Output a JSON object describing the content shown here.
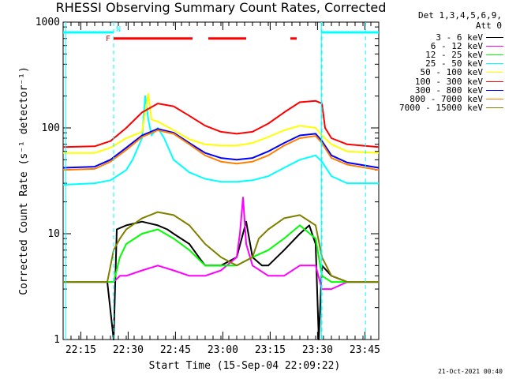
{
  "title": "RHESSI Observing Summary Count Rates, Corrected",
  "legend_header": [
    "Det 1,3,4,5,6,9,",
    "Att 0"
  ],
  "footer_date": "21-Oct-2021 00:40",
  "flags": {
    "f_label": "F",
    "n_label": "N"
  },
  "chart_data": {
    "type": "line",
    "xlabel": "Start Time (15-Sep-04 22:09:22)",
    "ylabel": "Corrected Count Rate (s⁻¹ detector⁻¹)",
    "x_ticks": [
      "22:15",
      "22:30",
      "22:45",
      "23:00",
      "23:15",
      "23:30",
      "23:45"
    ],
    "x_tick_minutes": [
      5.6,
      20.6,
      35.6,
      50.6,
      65.6,
      80.6,
      95.6
    ],
    "x_range_minutes": [
      0,
      100
    ],
    "y_scale": "log",
    "ylim": [
      1,
      1000
    ],
    "y_ticks": [
      "1",
      "10",
      "100",
      "1000"
    ],
    "y_tick_values": [
      1,
      10,
      100,
      1000
    ],
    "series": [
      {
        "name": "3 - 6 keV",
        "color": "#000000",
        "x": [
          0,
          14,
          16,
          17,
          20,
          25,
          30,
          33,
          35,
          40,
          43,
          45,
          50,
          55,
          58,
          60,
          63,
          65,
          70,
          75,
          78,
          80,
          81,
          82,
          85,
          90,
          100
        ],
        "y": [
          3.5,
          3.5,
          1,
          11,
          12,
          13,
          12,
          11,
          10,
          8,
          6,
          5,
          5,
          6,
          13,
          6,
          5,
          5,
          7,
          10,
          12,
          8,
          1,
          5,
          4,
          3.5,
          3.5
        ]
      },
      {
        "name": "6 - 12 keV",
        "color": "#ff00ff",
        "x": [
          0,
          16,
          18,
          20,
          25,
          30,
          35,
          40,
          45,
          50,
          55,
          56,
          57,
          58,
          60,
          65,
          70,
          75,
          80,
          82,
          85,
          90,
          100
        ],
        "y": [
          3.5,
          3.5,
          4,
          4,
          4.5,
          5,
          4.5,
          4,
          4,
          4.5,
          6,
          10,
          22,
          8,
          5,
          4,
          4,
          5,
          5,
          3,
          3,
          3.5,
          3.5
        ]
      },
      {
        "name": "12 - 25 keV",
        "color": "#00ff00",
        "x": [
          0,
          16,
          18,
          20,
          25,
          30,
          35,
          40,
          45,
          50,
          55,
          60,
          65,
          70,
          75,
          80,
          82,
          85,
          90,
          100
        ],
        "y": [
          3.5,
          3.5,
          6,
          8,
          10,
          11,
          9,
          7,
          5,
          5,
          5,
          6,
          7,
          9,
          12,
          9,
          4,
          3.5,
          3.5,
          3.5
        ]
      },
      {
        "name": "25 - 50 keV",
        "color": "#00ffff",
        "x": [
          0,
          10,
          15,
          20,
          22,
          25,
          26,
          27,
          28,
          30,
          32,
          35,
          40,
          45,
          50,
          55,
          60,
          65,
          70,
          75,
          80,
          82,
          85,
          90,
          100
        ],
        "y": [
          29,
          30,
          32,
          40,
          50,
          80,
          200,
          120,
          85,
          100,
          80,
          50,
          38,
          33,
          31,
          31,
          32,
          35,
          42,
          50,
          55,
          48,
          35,
          30,
          30
        ]
      },
      {
        "name": "50 - 100 keV",
        "color": "#ffff00",
        "x": [
          0,
          10,
          15,
          20,
          25,
          27,
          28,
          30,
          35,
          40,
          45,
          50,
          55,
          60,
          65,
          70,
          75,
          80,
          82,
          85,
          90,
          100
        ],
        "y": [
          58,
          58,
          65,
          80,
          92,
          210,
          120,
          115,
          95,
          78,
          70,
          68,
          68,
          72,
          82,
          95,
          105,
          100,
          85,
          70,
          60,
          58
        ]
      },
      {
        "name": "100 - 300 keV",
        "color": "#ff0000",
        "x": [
          0,
          10,
          15,
          20,
          25,
          30,
          35,
          40,
          45,
          50,
          55,
          60,
          65,
          70,
          75,
          80,
          82,
          83,
          85,
          90,
          100
        ],
        "y": [
          66,
          67,
          75,
          100,
          140,
          170,
          160,
          130,
          105,
          92,
          88,
          92,
          110,
          140,
          175,
          180,
          170,
          100,
          80,
          70,
          66
        ]
      },
      {
        "name": "300 - 800 keV",
        "color": "#0000ff",
        "x": [
          0,
          10,
          15,
          20,
          25,
          30,
          35,
          40,
          45,
          50,
          55,
          60,
          65,
          70,
          75,
          80,
          82,
          85,
          90,
          100
        ],
        "y": [
          42,
          43,
          50,
          65,
          85,
          98,
          90,
          72,
          58,
          52,
          50,
          52,
          60,
          72,
          85,
          88,
          75,
          55,
          47,
          42
        ]
      },
      {
        "name": "800 - 7000 keV",
        "color": "#ff8000",
        "x": [
          0,
          10,
          15,
          20,
          25,
          30,
          35,
          40,
          45,
          50,
          55,
          60,
          65,
          70,
          75,
          80,
          82,
          85,
          90,
          100
        ],
        "y": [
          40,
          41,
          48,
          62,
          82,
          95,
          88,
          70,
          55,
          48,
          46,
          48,
          55,
          68,
          80,
          84,
          72,
          52,
          45,
          40
        ]
      },
      {
        "name": "7000 - 15000 keV",
        "color": "#808000",
        "x": [
          0,
          14,
          16,
          18,
          20,
          25,
          30,
          35,
          40,
          45,
          50,
          55,
          60,
          62,
          65,
          70,
          75,
          80,
          82,
          85,
          90,
          100
        ],
        "y": [
          3.5,
          3.5,
          7,
          9,
          11,
          14,
          16,
          15,
          12,
          8,
          6,
          5,
          6,
          9,
          11,
          14,
          15,
          12,
          6,
          4,
          3.5,
          3.5
        ]
      }
    ],
    "attenuator_line": {
      "color": "#00ffff",
      "segments_minutes": [
        [
          0,
          16
        ],
        [
          82,
          100
        ]
      ],
      "level": 800
    },
    "flare_bar": {
      "color": "#ff0000",
      "segments_minutes": [
        [
          16,
          41
        ],
        [
          46,
          58
        ],
        [
          72,
          74
        ]
      ],
      "level": 700
    },
    "saa_markers_minutes": [
      16,
      82,
      95.8
    ],
    "saa_solid_minutes": [
      0.8,
      81.8
    ]
  }
}
